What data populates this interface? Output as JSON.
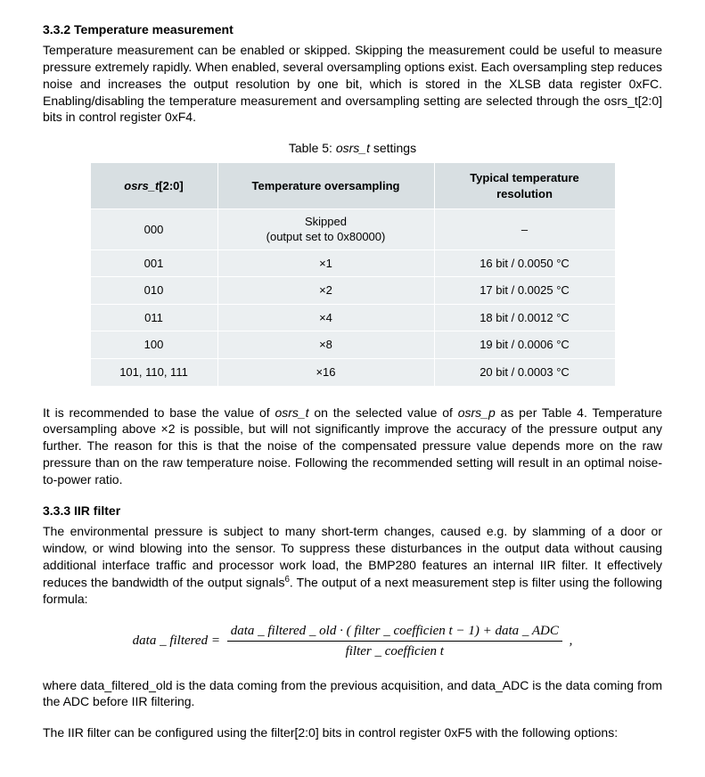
{
  "section1": {
    "heading": "3.3.2 Temperature measurement",
    "para1": "Temperature measurement can be enabled or skipped. Skipping the measurement could be useful to measure pressure extremely rapidly. When enabled, several oversampling options exist. Each oversampling step reduces noise and increases the output resolution by one bit, which is stored in the XLSB data register 0xFC. Enabling/disabling the temperature measurement and oversampling setting are selected through the osrs_t[2:0] bits in control register 0xF4."
  },
  "table5": {
    "caption_prefix": "Table 5: ",
    "caption_ital": "osrs_t",
    "caption_suffix": " settings",
    "headers": {
      "col1_ital": "osrs_t",
      "col1_suffix": "[2:0]",
      "col2": "Temperature oversampling",
      "col3": "Typical temperature resolution"
    },
    "rows": [
      {
        "c1": "000",
        "c2a": "Skipped",
        "c2b": "(output set to 0x80000)",
        "c3": "–"
      },
      {
        "c1": "001",
        "c2": "×1",
        "c3": "16 bit / 0.0050 °C"
      },
      {
        "c1": "010",
        "c2": "×2",
        "c3": "17 bit / 0.0025 °C"
      },
      {
        "c1": "011",
        "c2": "×4",
        "c3": "18 bit / 0.0012 °C"
      },
      {
        "c1": "100",
        "c2": "×8",
        "c3": "19 bit / 0.0006 °C"
      },
      {
        "c1": "101, 110, 111",
        "c2": "×16",
        "c3": "20 bit / 0.0003 °C"
      }
    ]
  },
  "para2a": "It is recommended to base the value of ",
  "para2a_it1": "osrs_t",
  "para2b": " on the selected value of ",
  "para2b_it2": "osrs_p",
  "para2c": " as per Table 4. Temperature oversampling above ×2 is possible, but will not significantly improve the accuracy of the pressure output any further. The reason for this is that the noise of the compensated pressure value depends more on the raw pressure than on the raw temperature noise. Following the recommended setting will result in an optimal noise-to-power ratio.",
  "section2": {
    "heading": "3.3.3 IIR filter",
    "para1a": "The environmental pressure is subject to many short-term changes, caused e.g. by slamming of a door or window, or wind blowing into the sensor. To suppress these disturbances in the output data without causing additional interface traffic and processor work load, the BMP280 features an internal IIR filter. It effectively reduces the bandwidth of the output signals",
    "para1_sup": "6",
    "para1b": ". The output of a next measurement step is filter using the following formula:"
  },
  "formula": {
    "lhs": "data _ filtered  =",
    "num": "data _ filtered _ old · ( filter _ coefficien t − 1) + data _ ADC",
    "den": "filter _ coefficien t",
    "tail": ","
  },
  "para3": "where data_filtered_old is the data coming from the previous acquisition, and data_ADC is the data coming from the ADC before IIR filtering.",
  "para4": "The IIR filter can be configured using the filter[2:0] bits in control register 0xF5 with the following options:"
}
